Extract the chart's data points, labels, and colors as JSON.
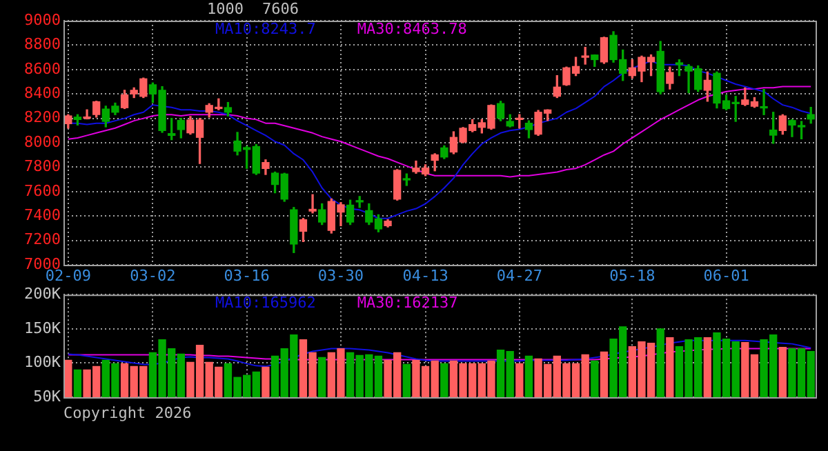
{
  "chart_data": [
    {
      "type": "candlestick",
      "annotations": [
        "1000",
        "7606"
      ],
      "categories": [
        "02-09",
        null,
        null,
        null,
        null,
        null,
        null,
        null,
        null,
        "03-02",
        null,
        null,
        null,
        null,
        null,
        null,
        null,
        null,
        null,
        "03-16",
        null,
        null,
        null,
        null,
        null,
        null,
        null,
        null,
        null,
        "03-30",
        null,
        null,
        null,
        null,
        null,
        null,
        null,
        null,
        "04-13",
        null,
        null,
        null,
        null,
        null,
        null,
        null,
        null,
        null,
        "04-27",
        null,
        null,
        null,
        null,
        null,
        null,
        null,
        null,
        null,
        null,
        null,
        "05-18",
        null,
        null,
        null,
        null,
        null,
        null,
        null,
        null,
        null,
        "06-01",
        null,
        null,
        null,
        null,
        null,
        null,
        null,
        null,
        null
      ],
      "ohlc": [
        [
          8156,
          8230,
          8120,
          8220
        ],
        [
          8210,
          8230,
          8145,
          8190
        ],
        [
          8200,
          8270,
          8195,
          8210
        ],
        [
          8231,
          8340,
          8210,
          8336
        ],
        [
          8276,
          8300,
          8130,
          8175
        ],
        [
          8300,
          8325,
          8230,
          8250
        ],
        [
          8287,
          8430,
          8280,
          8392
        ],
        [
          8400,
          8450,
          8370,
          8430
        ],
        [
          8380,
          8530,
          8370,
          8524
        ],
        [
          8475,
          8490,
          8330,
          8400
        ],
        [
          8430,
          8460,
          8085,
          8100
        ],
        [
          8075,
          8200,
          8025,
          8060
        ],
        [
          8183,
          8200,
          8040,
          8108
        ],
        [
          8081,
          8215,
          8070,
          8186
        ],
        [
          8044,
          8200,
          7830,
          8186
        ],
        [
          8250,
          8320,
          8210,
          8306
        ],
        [
          8280,
          8360,
          8270,
          8290
        ],
        [
          8288,
          8330,
          8220,
          8250
        ],
        [
          8014,
          8085,
          7900,
          7931
        ],
        [
          7960,
          7970,
          7790,
          7945
        ],
        [
          7969,
          7985,
          7740,
          7751
        ],
        [
          7789,
          7860,
          7740,
          7838
        ],
        [
          7751,
          7760,
          7590,
          7658
        ],
        [
          7744,
          7750,
          7520,
          7538
        ],
        [
          7451,
          7470,
          7100,
          7170
        ],
        [
          7275,
          7380,
          7190,
          7369
        ],
        [
          7440,
          7575,
          7425,
          7455
        ],
        [
          7451,
          7500,
          7330,
          7350
        ],
        [
          7282,
          7540,
          7260,
          7519
        ],
        [
          7432,
          7510,
          7320,
          7492
        ],
        [
          7489,
          7530,
          7330,
          7350
        ],
        [
          7525,
          7560,
          7470,
          7515
        ],
        [
          7444,
          7500,
          7330,
          7350
        ],
        [
          7376,
          7410,
          7270,
          7294
        ],
        [
          7320,
          7370,
          7310,
          7358
        ],
        [
          7538,
          7780,
          7530,
          7774
        ],
        [
          7700,
          7745,
          7650,
          7695
        ],
        [
          7763,
          7850,
          7750,
          7793
        ],
        [
          7744,
          7820,
          7730,
          7793
        ],
        [
          7856,
          7910,
          7770,
          7901
        ],
        [
          7958,
          7975,
          7870,
          7883
        ],
        [
          7924,
          8090,
          7910,
          8044
        ],
        [
          8006,
          8125,
          8000,
          8119
        ],
        [
          8100,
          8190,
          8090,
          8149
        ],
        [
          8126,
          8190,
          8080,
          8164
        ],
        [
          8119,
          8310,
          8110,
          8306
        ],
        [
          8321,
          8340,
          8180,
          8201
        ],
        [
          8175,
          8230,
          8130,
          8137
        ],
        [
          8190,
          8231,
          8120,
          8200
        ],
        [
          8160,
          8180,
          8040,
          8108
        ],
        [
          8070,
          8265,
          8060,
          8250
        ],
        [
          8242,
          8270,
          8182,
          8269
        ],
        [
          8381,
          8550,
          8370,
          8456
        ],
        [
          8475,
          8620,
          8470,
          8614
        ],
        [
          8569,
          8700,
          8550,
          8625
        ],
        [
          8700,
          8782,
          8644,
          8710
        ],
        [
          8719,
          8720,
          8625,
          8681
        ],
        [
          8662,
          8865,
          8650,
          8861
        ],
        [
          8880,
          8910,
          8660,
          8681
        ],
        [
          8681,
          8760,
          8510,
          8569
        ],
        [
          8550,
          8680,
          8530,
          8614
        ],
        [
          8587,
          8710,
          8500,
          8700
        ],
        [
          8663,
          8720,
          8550,
          8700
        ],
        [
          8749,
          8830,
          8400,
          8419
        ],
        [
          8486,
          8620,
          8440,
          8576
        ],
        [
          8655,
          8680,
          8550,
          8640
        ],
        [
          8625,
          8640,
          8410,
          8587
        ],
        [
          8606,
          8630,
          8420,
          8437
        ],
        [
          8430,
          8580,
          8340,
          8512
        ],
        [
          8569,
          8580,
          8285,
          8325
        ],
        [
          8344,
          8390,
          8270,
          8280
        ],
        [
          8330,
          8380,
          8175,
          8320
        ],
        [
          8314,
          8450,
          8305,
          8351
        ],
        [
          8299,
          8370,
          8290,
          8336
        ],
        [
          8295,
          8437,
          8230,
          8285
        ],
        [
          8104,
          8250,
          7995,
          8062
        ],
        [
          8100,
          8230,
          8070,
          8220
        ],
        [
          8182,
          8190,
          8050,
          8145
        ],
        [
          8140,
          8175,
          8032,
          8130
        ],
        [
          8231,
          8290,
          8160,
          8194
        ]
      ],
      "colors": [
        "#ff6060",
        "#00aa00",
        "#ff6060",
        "#ff6060",
        "#00aa00",
        "#00aa00",
        "#ff6060",
        "#ff6060",
        "#ff6060",
        "#00aa00",
        "#00aa00",
        "#00aa00",
        "#00aa00",
        "#ff6060",
        "#ff6060",
        "#ff6060",
        "#ff6060",
        "#00aa00",
        "#00aa00",
        "#00aa00",
        "#00aa00",
        "#ff6060",
        "#00aa00",
        "#00aa00",
        "#00aa00",
        "#ff6060",
        "#ff6060",
        "#00aa00",
        "#ff6060",
        "#ff6060",
        "#00aa00",
        "#00aa00",
        "#00aa00",
        "#00aa00",
        "#ff6060",
        "#ff6060",
        "#00aa00",
        "#ff6060",
        "#ff6060",
        "#ff6060",
        "#00aa00",
        "#ff6060",
        "#ff6060",
        "#ff6060",
        "#ff6060",
        "#ff6060",
        "#00aa00",
        "#00aa00",
        "#ff6060",
        "#00aa00",
        "#ff6060",
        "#ff6060",
        "#ff6060",
        "#ff6060",
        "#ff6060",
        "#ff6060",
        "#00aa00",
        "#ff6060",
        "#00aa00",
        "#00aa00",
        "#ff6060",
        "#ff6060",
        "#ff6060",
        "#00aa00",
        "#ff6060",
        "#00aa00",
        "#00aa00",
        "#00aa00",
        "#ff6060",
        "#00aa00",
        "#00aa00",
        "#00aa00",
        "#ff6060",
        "#ff6060",
        "#00aa00",
        "#00aa00",
        "#ff6060",
        "#00aa00",
        "#00aa00",
        "#00aa00"
      ],
      "series": [
        {
          "name": "MA10:8243.7",
          "type": "line",
          "color": "#1010e0",
          "values": [
            8160,
            8160,
            8150,
            8160,
            8160,
            8180,
            8200,
            8230,
            8250,
            8310,
            8300,
            8290,
            8270,
            8270,
            8260,
            8260,
            8250,
            8230,
            8180,
            8140,
            8100,
            8060,
            8010,
            7980,
            7910,
            7860,
            7760,
            7630,
            7540,
            7490,
            7460,
            7450,
            7420,
            7380,
            7380,
            7410,
            7440,
            7460,
            7500,
            7560,
            7630,
            7710,
            7820,
            7910,
            7990,
            8040,
            8080,
            8100,
            8110,
            8130,
            8160,
            8180,
            8200,
            8250,
            8280,
            8330,
            8380,
            8460,
            8510,
            8570,
            8610,
            8640,
            8670,
            8640,
            8640,
            8640,
            8630,
            8590,
            8570,
            8540,
            8510,
            8480,
            8460,
            8440,
            8420,
            8360,
            8310,
            8290,
            8260,
            8240
          ]
        },
        {
          "name": "MA30:8463.78",
          "type": "line",
          "color": "#e000e0",
          "values": [
            8030,
            8040,
            8060,
            8080,
            8100,
            8120,
            8150,
            8180,
            8200,
            8220,
            8230,
            8230,
            8220,
            8230,
            8230,
            8230,
            8230,
            8230,
            8220,
            8200,
            8190,
            8160,
            8160,
            8140,
            8120,
            8100,
            8080,
            8050,
            8030,
            8010,
            7980,
            7950,
            7920,
            7890,
            7870,
            7840,
            7810,
            7780,
            7750,
            7730,
            7730,
            7730,
            7730,
            7730,
            7730,
            7730,
            7730,
            7720,
            7730,
            7730,
            7740,
            7750,
            7760,
            7780,
            7790,
            7820,
            7860,
            7900,
            7930,
            7990,
            8040,
            8090,
            8140,
            8190,
            8230,
            8270,
            8310,
            8350,
            8380,
            8400,
            8420,
            8430,
            8440,
            8440,
            8450,
            8450,
            8460,
            8460,
            8460,
            8460
          ]
        }
      ],
      "ylim": [
        7000,
        9000
      ],
      "yticks": [
        7000,
        7200,
        7400,
        7600,
        7800,
        8000,
        8200,
        8400,
        8600,
        8800,
        9000
      ],
      "grid": true,
      "legend": "top"
    },
    {
      "type": "bar",
      "annotations": [
        "Copyright 2026"
      ],
      "categories": [
        null,
        null,
        null,
        null,
        null,
        null,
        null,
        null,
        null,
        null,
        null,
        null,
        null,
        null,
        null,
        null,
        null,
        null,
        null,
        null,
        null,
        null,
        null,
        null,
        null,
        null,
        null,
        null,
        null,
        null,
        null,
        null,
        null,
        null,
        null,
        null,
        null,
        null,
        null,
        null,
        null,
        null,
        null,
        null,
        null,
        null,
        null,
        null,
        null,
        null,
        null,
        null,
        null,
        null,
        null,
        null,
        null,
        null,
        null,
        null,
        null,
        null,
        null,
        null,
        null,
        null,
        null,
        null,
        null,
        null,
        null,
        null,
        null,
        null,
        null,
        null,
        null,
        null,
        null,
        null
      ],
      "series": [
        {
          "type": "bar",
          "colors": [
            "#ff6060",
            "#00aa00",
            "#ff6060",
            "#ff6060",
            "#00aa00",
            "#00aa00",
            "#ff6060",
            "#ff6060",
            "#ff6060",
            "#00aa00",
            "#00aa00",
            "#00aa00",
            "#00aa00",
            "#ff6060",
            "#ff6060",
            "#ff6060",
            "#ff6060",
            "#00aa00",
            "#00aa00",
            "#00aa00",
            "#00aa00",
            "#ff6060",
            "#00aa00",
            "#00aa00",
            "#00aa00",
            "#ff6060",
            "#ff6060",
            "#00aa00",
            "#ff6060",
            "#ff6060",
            "#00aa00",
            "#00aa00",
            "#00aa00",
            "#00aa00",
            "#ff6060",
            "#ff6060",
            "#00aa00",
            "#ff6060",
            "#ff6060",
            "#ff6060",
            "#00aa00",
            "#ff6060",
            "#ff6060",
            "#ff6060",
            "#ff6060",
            "#ff6060",
            "#00aa00",
            "#00aa00",
            "#ff6060",
            "#00aa00",
            "#ff6060",
            "#ff6060",
            "#ff6060",
            "#ff6060",
            "#ff6060",
            "#ff6060",
            "#00aa00",
            "#ff6060",
            "#00aa00",
            "#00aa00",
            "#ff6060",
            "#ff6060",
            "#ff6060",
            "#00aa00",
            "#ff6060",
            "#00aa00",
            "#00aa00",
            "#00aa00",
            "#ff6060",
            "#00aa00",
            "#00aa00",
            "#00aa00",
            "#ff6060",
            "#ff6060",
            "#00aa00",
            "#00aa00",
            "#ff6060",
            "#00aa00",
            "#00aa00",
            "#00aa00"
          ],
          "values": [
            104000,
            90000,
            90000,
            95000,
            104000,
            99000,
            99000,
            95000,
            95000,
            115000,
            134000,
            121000,
            113000,
            101000,
            126000,
            101000,
            94000,
            99000,
            79000,
            82000,
            87000,
            94000,
            110000,
            121000,
            141000,
            134000,
            115000,
            108000,
            115000,
            121000,
            115000,
            111000,
            112000,
            110000,
            104000,
            115000,
            98000,
            104000,
            95000,
            103000,
            99000,
            103000,
            99000,
            99000,
            99000,
            103000,
            119000,
            117000,
            99000,
            110000,
            106000,
            98000,
            110000,
            99000,
            99000,
            112000,
            103000,
            116000,
            135000,
            153000,
            124000,
            131000,
            129000,
            150000,
            137000,
            124000,
            134000,
            137000,
            137000,
            144000,
            135000,
            131000,
            130000,
            112000,
            134000,
            141000,
            123000,
            121000,
            121000,
            117000
          ]
        },
        {
          "name": "MA10:165962",
          "type": "line",
          "color": "#1010e0",
          "values": [
            113000,
            112000,
            110000,
            108000,
            106000,
            104000,
            102000,
            100000,
            98000,
            98000,
            100000,
            104000,
            108000,
            109000,
            108000,
            108000,
            107000,
            106000,
            103000,
            99000,
            96000,
            95000,
            98000,
            103000,
            108000,
            113000,
            117000,
            119000,
            121000,
            121000,
            121000,
            120000,
            119000,
            117000,
            115000,
            112000,
            109000,
            106000,
            104000,
            103000,
            103000,
            103000,
            103000,
            103000,
            103000,
            103000,
            103000,
            103000,
            103000,
            104000,
            104000,
            104000,
            104000,
            104000,
            105000,
            106000,
            108000,
            110000,
            113000,
            116000,
            118000,
            121000,
            123000,
            126000,
            129000,
            131000,
            133000,
            133000,
            133000,
            133000,
            133000,
            133000,
            133000,
            132000,
            131000,
            130000,
            129000,
            128000,
            125000,
            122000
          ]
        },
        {
          "name": "MA30:162137",
          "type": "line",
          "color": "#e000e0",
          "values": [
            112000,
            112000,
            112000,
            112000,
            112000,
            112000,
            112000,
            112000,
            112000,
            112000,
            112000,
            112000,
            112000,
            112000,
            111000,
            111000,
            110000,
            110000,
            109000,
            108000,
            107000,
            106000,
            106000,
            105000,
            105000,
            105000,
            105000,
            105000,
            105000,
            105000,
            105000,
            105000,
            105000,
            105000,
            105000,
            105000,
            105000,
            105000,
            105000,
            105000,
            105000,
            105000,
            105000,
            105000,
            105000,
            105000,
            105000,
            105000,
            105000,
            105000,
            105000,
            105000,
            105000,
            105000,
            105000,
            105000,
            105000,
            106000,
            107000,
            108000,
            109000,
            110000,
            112000,
            114000,
            116000,
            117000,
            118000,
            119000,
            120000,
            120000,
            121000,
            121000,
            121000,
            121000,
            121000,
            121000,
            121000,
            121000,
            121000,
            121000
          ]
        }
      ],
      "ylim": [
        50000,
        200000
      ],
      "yticks": [
        {
          "value": 50000,
          "label": "50K"
        },
        {
          "value": 100000,
          "label": "100K"
        },
        {
          "value": 150000,
          "label": "150K"
        },
        {
          "value": 200000,
          "label": "200K"
        }
      ],
      "grid": true,
      "legend": "top",
      "tick_labels": "y"
    }
  ]
}
